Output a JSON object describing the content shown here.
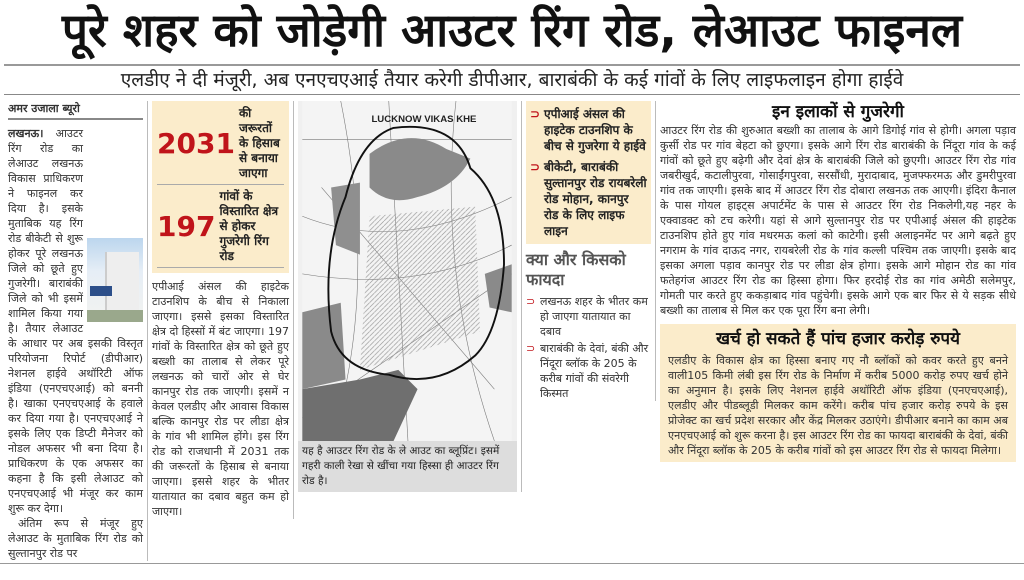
{
  "headline": "पूरे शहर को जोड़ेगी आउटर रिंग रोड, लेआउट फाइनल",
  "subheadline": "एलडीए ने दी मंजूरी, अब एनएचएआई तैयार करेगी डीपीआर, बाराबंकी के कई गांवों के लिए लाइफलाइन होगा हाईवे",
  "byline": "अमर उजाला ब्यूरो",
  "col1": {
    "dateline": "लखनऊ।",
    "para1": " आउटर रिंग रोड का लेआउट लखनऊ विकास प्राधिकरण ने फाइनल कर दिया है। इसके मुताबिक यह रिंग रोड बीकेटी से शुरू होकर पूरे लखनऊ जिले को छूते हुए गुजरेगी। बाराबंकी जिले को भी इसमें शामिल किया गया है। तैयार लेआउट के आधार पर अब इसकी विस्तृत परियोजना रिपोर्ट (डीपीआर) नेशनल हाईवे अथॉरिटी ऑफ इंडिया (एनएचएआई) को बननी है। खाका एनएचएआई के हवाले कर दिया गया है। एनएचएआई ने इसके लिए एक डिप्टी मैनेजर को नोडल अफसर भी बना दिया है। प्राधिकरण के एक अफसर का कहना है कि इसी लेआउट को एनएचएआई भी मंजूर कर काम शुरू कर देगा।",
    "para2": "अंतिम रूप से मंजूर हुए लेआउट के मुताबिक रिंग रोड को सुल्तानपुर रोड पर"
  },
  "factbox": {
    "items": [
      {
        "number": "2031",
        "text": "की जरूरतों के हिसाब से बनाया जाएगा"
      },
      {
        "number": "197",
        "text": "गांवों के विस्तारित क्षेत्र से होकर गुजरेगी रिंग रोड"
      }
    ]
  },
  "col2": {
    "text": "एपीआई अंसल की हाइटेक टाउनशिप के बीच से निकाला जाएगा। इससे इसका विस्तारित क्षेत्र दो हिस्सों में बंट जाएगा। 197 गांवों के विस्तारित क्षेत्र को छूते हुए बख्शी का तालाब से लेकर पूरे लखनऊ को चारों ओर से घेर कानपुर रोड तक जाएगी। इसमें न केवल एलडीए और आवास विकास बल्कि कानपुर रोड पर लीडा क्षेत्र के गांव भी शामिल होंगे। इस रिंग रोड को राजधानी में 2031 तक की जरूरतों के हिसाब से बनाया जाएगा। इससे शहर के भीतर यातायात का दबाव बहुत कम हो जाएगा।"
  },
  "map": {
    "label": "LUCKNOW VIKAS KHE",
    "caption": "यह है आउटर रिंग रोड के ले आउट का ब्लूप्रिंट। इसमें गहरी काली रेखा से खींचा गया हिस्सा ही आउटर रिंग रोड है।"
  },
  "highlights": [
    "एपीआई अंसल की हाइटेक टाउनशिप के बीच से गुजरेगा ये हाईवे",
    "बीकेटी, बाराबंकी सुल्तानपुर रोड रायबरेली रोड मोहान, कानपुर रोड के लिए लाइफ लाइन"
  ],
  "benefits": {
    "heading": "क्या और किसको फायदा",
    "items": [
      "लखनऊ शहर के भीतर कम हो जाएगा यातायात का दबाव",
      "बाराबंकी के देवां, बंकी और निंदूरा ब्लॉक के 205 के करीब गांवों की संवरेगी किस्मत"
    ]
  },
  "route": {
    "heading": "इन इलाकों से गुजरेगी",
    "text": "आउटर रिंग रोड की शुरुआत बख्शी का तालाब के आगे डिगोई गांव से होगी। अगला पड़ाव कुर्सी रोड पर गांव बेहटा को छुएगा। इसके आगे रिंग रोड बाराबंकी के निंदूरा गांव के कई गांवों को छूते हुए बढ़ेगी और देवां क्षेत्र के बाराबंकी जिले को छुएगी। आउटर रिंग रोड गांव जबरीखुर्द, कटालीपुरवा, गोसाईंगपुरवा, सरसौंधी, मुरादाबाद, मुजफ्फरमऊ और डुमरीपुरवा गांव तक जाएगी। इसके बाद में आउटर रिंग रोड दोबारा लखनऊ तक आएगी। इंदिरा कैनाल के पास गोयल हाइट्स अपार्टमेंट के पास से आउटर रिंग रोड निकलेगी,यह नहर के एक्वाडक्ट को टच करेगी। यहां से आगे सुल्तानपुर रोड पर एपीआई अंसल की हाइटेक टाउनशिप होते हुए गांव मधरमऊ कलां को काटेगी। इसी अलाइनमेंट पर आगे बढ़ते हुए नगराम के गांव दाऊद नगर, रायबरेली रोड के गांव कल्ली पश्चिम तक जाएगी। इसके बाद इसका अगला पड़ाव कानपुर रोड पर लीडा क्षेत्र होगा। इसके आगे मोहान रोड का गांव फतेहगंज आउटर रिंग रोड का हिस्सा होगा। फिर हरदोई रोड का गांव अमेठी सलेमपुर, गोमती पार करते हुए ककड़ाबाद गांव पहुंचेगी। इसके आगे एक बार फिर से ये सड़क सीधे बख्शी का तालाब से मिल कर एक पूरा रिंग बना लेगी।"
  },
  "cost": {
    "heading": "खर्च हो सकते हैं पांच हजार करोड़ रुपये",
    "text": "एलडीए के विकास क्षेत्र का हिस्सा बनाए गए नौ ब्लॉकों को कवर करते हुए बनने वाली105 किमी लंबी इस रिंग रोड के निर्माण में करीब 5000 करोड़ रुपए खर्च होने का अनुमान है। इसके लिए नेशनल हाईवे अथॉरिटी ऑफ इंडिया (एनएचएआई), एलडीए और पीडब्लूडी मिलकर काम करेंगे। करीब पांच हजार करोड़ रुपये के इस प्रोजेक्ट का खर्च प्रदेश सरकार और केंद्र मिलकर उठाएंगे। डीपीआर बनाने का काम अब एनएचएआई को शुरू करना है। इस आउटर रिंग रोड का फायदा बाराबंकी के देवां, बंकी और निंदूरा ब्लॉक के 205 के करीब गांवों को इस आउटर रिंग रोड से फायदा मिलेगा।"
  },
  "colors": {
    "accent_red": "#c0141a",
    "box_yellow": "#fbeccb"
  }
}
